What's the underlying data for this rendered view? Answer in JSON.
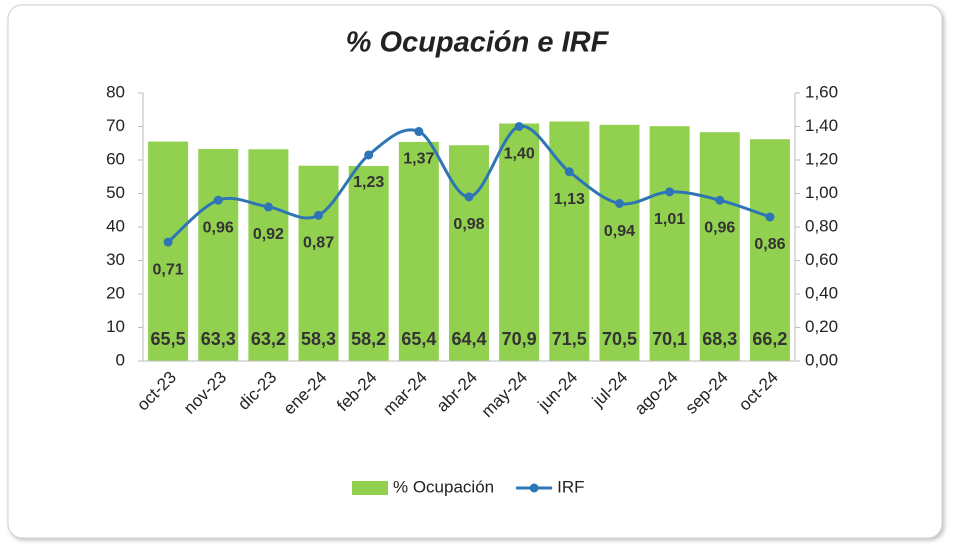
{
  "chart_data": {
    "type": "bar_line",
    "title": "% Ocupación e IRF",
    "categories": [
      "oct-23",
      "nov-23",
      "dic-23",
      "ene-24",
      "feb-24",
      "mar-24",
      "abr-24",
      "may-24",
      "jun-24",
      "jul-24",
      "ago-24",
      "sep-24",
      "oct-24"
    ],
    "series": [
      {
        "name": "% Ocupación",
        "type": "bar",
        "color": "#92d050",
        "values": [
          65.5,
          63.3,
          63.2,
          58.3,
          58.2,
          65.4,
          64.4,
          70.9,
          71.5,
          70.5,
          70.1,
          68.3,
          66.2
        ],
        "value_labels": [
          "65,5",
          "63,3",
          "63,2",
          "58,3",
          "58,2",
          "65,4",
          "64,4",
          "70,9",
          "71,5",
          "70,5",
          "70,1",
          "68,3",
          "66,2"
        ]
      },
      {
        "name": "IRF",
        "type": "line",
        "axis": "y2",
        "color": "#2e75b6",
        "values": [
          0.71,
          0.96,
          0.92,
          0.87,
          1.23,
          1.37,
          0.98,
          1.4,
          1.13,
          0.94,
          1.01,
          0.96,
          0.86
        ],
        "value_labels": [
          "0,71",
          "0,96",
          "0,92",
          "0,87",
          "1,23",
          "1,37",
          "0,98",
          "1,40",
          "1,13",
          "0,94",
          "1,01",
          "0,96",
          "0,86"
        ]
      }
    ],
    "ylim": [
      0,
      80
    ],
    "yticks": [
      0,
      10,
      20,
      30,
      40,
      50,
      60,
      70,
      80
    ],
    "y2lim": [
      0,
      1.6
    ],
    "y2ticks": [
      {
        "value": 0,
        "label": "0,00"
      },
      {
        "value": 0.2,
        "label": "0,20"
      },
      {
        "value": 0.4,
        "label": "0,40"
      },
      {
        "value": 0.6,
        "label": "0,60"
      },
      {
        "value": 0.8,
        "label": "0,80"
      },
      {
        "value": 1.0,
        "label": "1,00"
      },
      {
        "value": 1.2,
        "label": "1,20"
      },
      {
        "value": 1.4,
        "label": "1,40"
      },
      {
        "value": 1.6,
        "label": "1,60"
      }
    ],
    "legend": "bottom"
  }
}
